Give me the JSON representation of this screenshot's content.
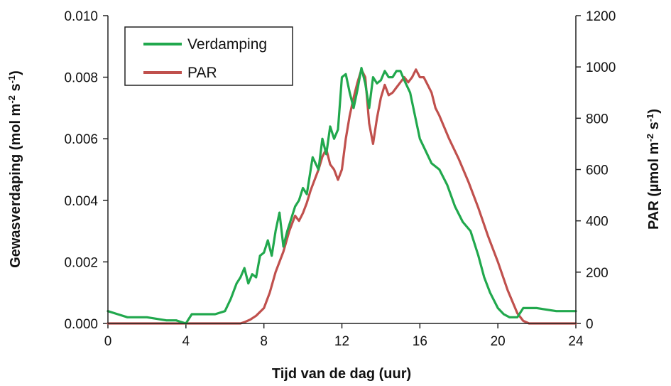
{
  "chart_data": {
    "type": "line",
    "xlabel": "Tijd van de dag (uur)",
    "ylabel_left": "Gewasverdamping (mol m-2 s-1)",
    "ylabel_right": "PAR (µmol m-2 s-1)",
    "xlim": [
      0,
      24
    ],
    "xticks": [
      "0",
      "4",
      "8",
      "12",
      "16",
      "20",
      "24"
    ],
    "ylim_left": [
      0,
      0.01
    ],
    "yticks_left": [
      "0.000",
      "0.002",
      "0.004",
      "0.006",
      "0.008",
      "0.010"
    ],
    "ylim_right": [
      0,
      1200
    ],
    "yticks_right": [
      "0",
      "200",
      "400",
      "600",
      "800",
      "1000",
      "1200"
    ],
    "grid": false,
    "legend_position": "top-left",
    "series": [
      {
        "name": "Verdamping",
        "axis": "left",
        "color": "#21a84d",
        "x": [
          0,
          0.5,
          1,
          2,
          3,
          3.5,
          4,
          4.3,
          5,
          5.5,
          6,
          6.3,
          6.6,
          6.8,
          7,
          7.2,
          7.4,
          7.6,
          7.8,
          8,
          8.2,
          8.4,
          8.6,
          8.8,
          9,
          9.2,
          9.4,
          9.6,
          9.8,
          10,
          10.2,
          10.5,
          10.8,
          11,
          11.2,
          11.4,
          11.6,
          11.8,
          12,
          12.2,
          12.4,
          12.6,
          12.8,
          13,
          13.2,
          13.4,
          13.6,
          13.8,
          14,
          14.2,
          14.4,
          14.6,
          14.8,
          15,
          15.2,
          15.5,
          15.8,
          16,
          16.3,
          16.6,
          17,
          17.4,
          17.8,
          18.2,
          18.6,
          19,
          19.3,
          19.6,
          20,
          20.3,
          20.6,
          21,
          21.3,
          21.6,
          22,
          23,
          24
        ],
        "y": [
          0.0004,
          0.0003,
          0.0002,
          0.0002,
          0.0001,
          0.0001,
          0.0,
          0.0003,
          0.0003,
          0.0003,
          0.0004,
          0.0008,
          0.0013,
          0.0015,
          0.0018,
          0.0013,
          0.0016,
          0.0015,
          0.0022,
          0.0023,
          0.0027,
          0.0022,
          0.003,
          0.0036,
          0.0025,
          0.003,
          0.0034,
          0.0038,
          0.004,
          0.0044,
          0.0042,
          0.0054,
          0.005,
          0.006,
          0.0055,
          0.0064,
          0.006,
          0.0063,
          0.008,
          0.0081,
          0.0075,
          0.007,
          0.0076,
          0.0083,
          0.0078,
          0.007,
          0.008,
          0.0078,
          0.0079,
          0.0082,
          0.008,
          0.008,
          0.0082,
          0.0082,
          0.0079,
          0.0075,
          0.0066,
          0.006,
          0.0056,
          0.0052,
          0.005,
          0.0045,
          0.0038,
          0.0033,
          0.003,
          0.0022,
          0.0015,
          0.001,
          0.0005,
          0.0003,
          0.0002,
          0.0002,
          0.0005,
          0.0005,
          0.0005,
          0.0004,
          0.0004
        ]
      },
      {
        "name": "PAR",
        "axis": "right",
        "color": "#c0504d",
        "x": [
          0,
          6.5,
          6.8,
          7,
          7.3,
          7.6,
          8,
          8.3,
          8.6,
          9,
          9.3,
          9.6,
          9.8,
          10,
          10.2,
          10.4,
          10.6,
          10.8,
          11,
          11.2,
          11.4,
          11.6,
          11.8,
          12,
          12.2,
          12.4,
          12.6,
          12.8,
          13,
          13.2,
          13.4,
          13.6,
          13.8,
          14,
          14.2,
          14.4,
          14.6,
          14.8,
          15,
          15.2,
          15.4,
          15.6,
          15.8,
          16,
          16.2,
          16.4,
          16.6,
          16.8,
          17,
          17.5,
          18,
          18.5,
          19,
          19.5,
          20,
          20.5,
          21,
          21.3,
          21.6,
          22,
          24
        ],
        "y": [
          0,
          0,
          0,
          5,
          15,
          30,
          60,
          120,
          200,
          280,
          360,
          420,
          400,
          430,
          470,
          520,
          560,
          600,
          650,
          680,
          620,
          600,
          560,
          600,
          720,
          810,
          880,
          940,
          990,
          960,
          780,
          700,
          800,
          880,
          930,
          890,
          900,
          920,
          940,
          960,
          940,
          960,
          990,
          960,
          960,
          930,
          900,
          840,
          810,
          720,
          640,
          550,
          450,
          340,
          240,
          130,
          40,
          10,
          0,
          0,
          0
        ]
      }
    ]
  }
}
